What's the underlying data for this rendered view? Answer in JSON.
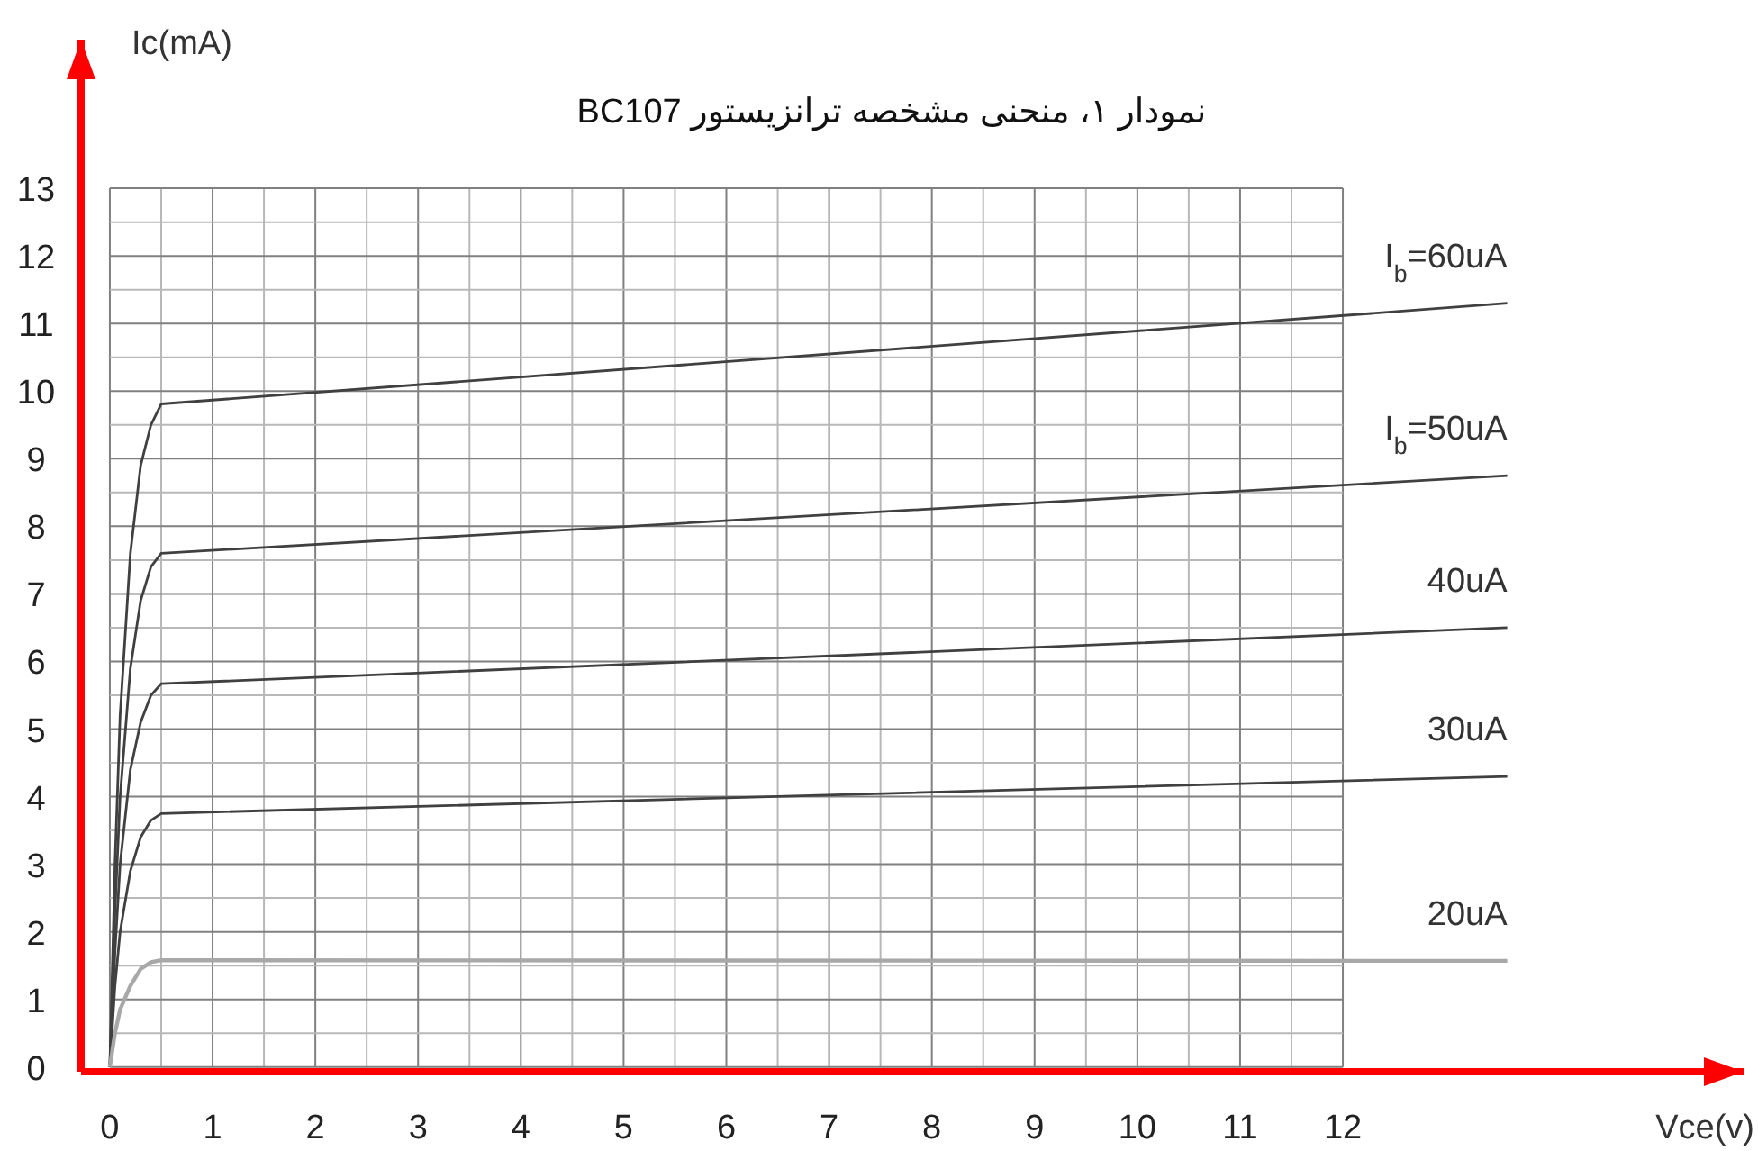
{
  "chart_data": {
    "type": "line",
    "title": "نمودار ۱، منحنی مشخصه ترانزیستور BC107",
    "xlabel": "Vce(v)",
    "ylabel": "Ic(mA)",
    "xlim": [
      -0.28,
      15.9
    ],
    "ylim": [
      -0.07,
      15.2
    ],
    "xticks": [
      0,
      {
        "value": 0.5,
        "label": null
      },
      1,
      {
        "value": 1.5,
        "label": null
      },
      2,
      {
        "value": 2.5,
        "label": null
      },
      3,
      {
        "value": 3.5,
        "label": null
      },
      4,
      {
        "value": 4.5,
        "label": null
      },
      5,
      {
        "value": 5.5,
        "label": null
      },
      6,
      {
        "value": 6.5,
        "label": null
      },
      7,
      {
        "value": 7.5,
        "label": null
      },
      8,
      {
        "value": 8.5,
        "label": null
      },
      9,
      {
        "value": 9.5,
        "label": null
      },
      10,
      {
        "value": 10.5,
        "label": null
      },
      11,
      {
        "value": 11.5,
        "label": null
      },
      12
    ],
    "yticks": [
      0,
      {
        "value": 0.5,
        "label": null
      },
      1,
      {
        "value": 1.5,
        "label": null
      },
      2,
      {
        "value": 2.5,
        "label": null
      },
      3,
      {
        "value": 3.5,
        "label": null
      },
      4,
      {
        "value": 4.5,
        "label": null
      },
      5,
      {
        "value": 5.5,
        "label": null
      },
      6,
      {
        "value": 6.5,
        "label": null
      },
      7,
      {
        "value": 7.5,
        "label": null
      },
      8,
      {
        "value": 8.5,
        "label": null
      },
      9,
      {
        "value": 9.5,
        "label": null
      },
      10,
      {
        "value": 10.5,
        "label": null
      },
      11,
      {
        "value": 11.5,
        "label": null
      },
      12,
      {
        "value": 12.5,
        "label": null
      },
      13
    ],
    "grid": true,
    "marker": "none",
    "line_style": "solid",
    "series": [
      {
        "name": "I$_{b}$=60uA",
        "color": "#404040",
        "x": [
          0,
          0.05,
          0.1,
          0.2,
          0.3,
          0.4,
          0.5,
          13.6
        ],
        "values": [
          0,
          3,
          5.2,
          7.6,
          8.9,
          9.5,
          9.81,
          11.3
        ]
      },
      {
        "name": "I$_{b}$=50uA",
        "color": "#404040",
        "x": [
          0,
          0.05,
          0.1,
          0.2,
          0.3,
          0.4,
          0.5,
          13.6
        ],
        "values": [
          0,
          2.3,
          4,
          5.9,
          6.9,
          7.4,
          7.6,
          8.75
        ]
      },
      {
        "name": "40uA",
        "color": "#404040",
        "x": [
          0,
          0.05,
          0.1,
          0.2,
          0.3,
          0.4,
          0.5,
          13.6
        ],
        "values": [
          0,
          1.7,
          3,
          4.4,
          5.1,
          5.5,
          5.67,
          6.5
        ]
      },
      {
        "name": "30uA",
        "color": "#404040",
        "x": [
          0,
          0.05,
          0.1,
          0.2,
          0.3,
          0.4,
          0.5,
          13.6
        ],
        "values": [
          0,
          1.2,
          2,
          2.9,
          3.4,
          3.65,
          3.75,
          4.3
        ]
      },
      {
        "name": "20uA",
        "color": "#a8a8a8",
        "x": [
          0,
          0.05,
          0.1,
          0.2,
          0.3,
          0.4,
          0.5,
          13.6
        ],
        "values": [
          0,
          0.5,
          0.85,
          1.2,
          1.45,
          1.55,
          1.58,
          1.57
        ]
      }
    ]
  }
}
